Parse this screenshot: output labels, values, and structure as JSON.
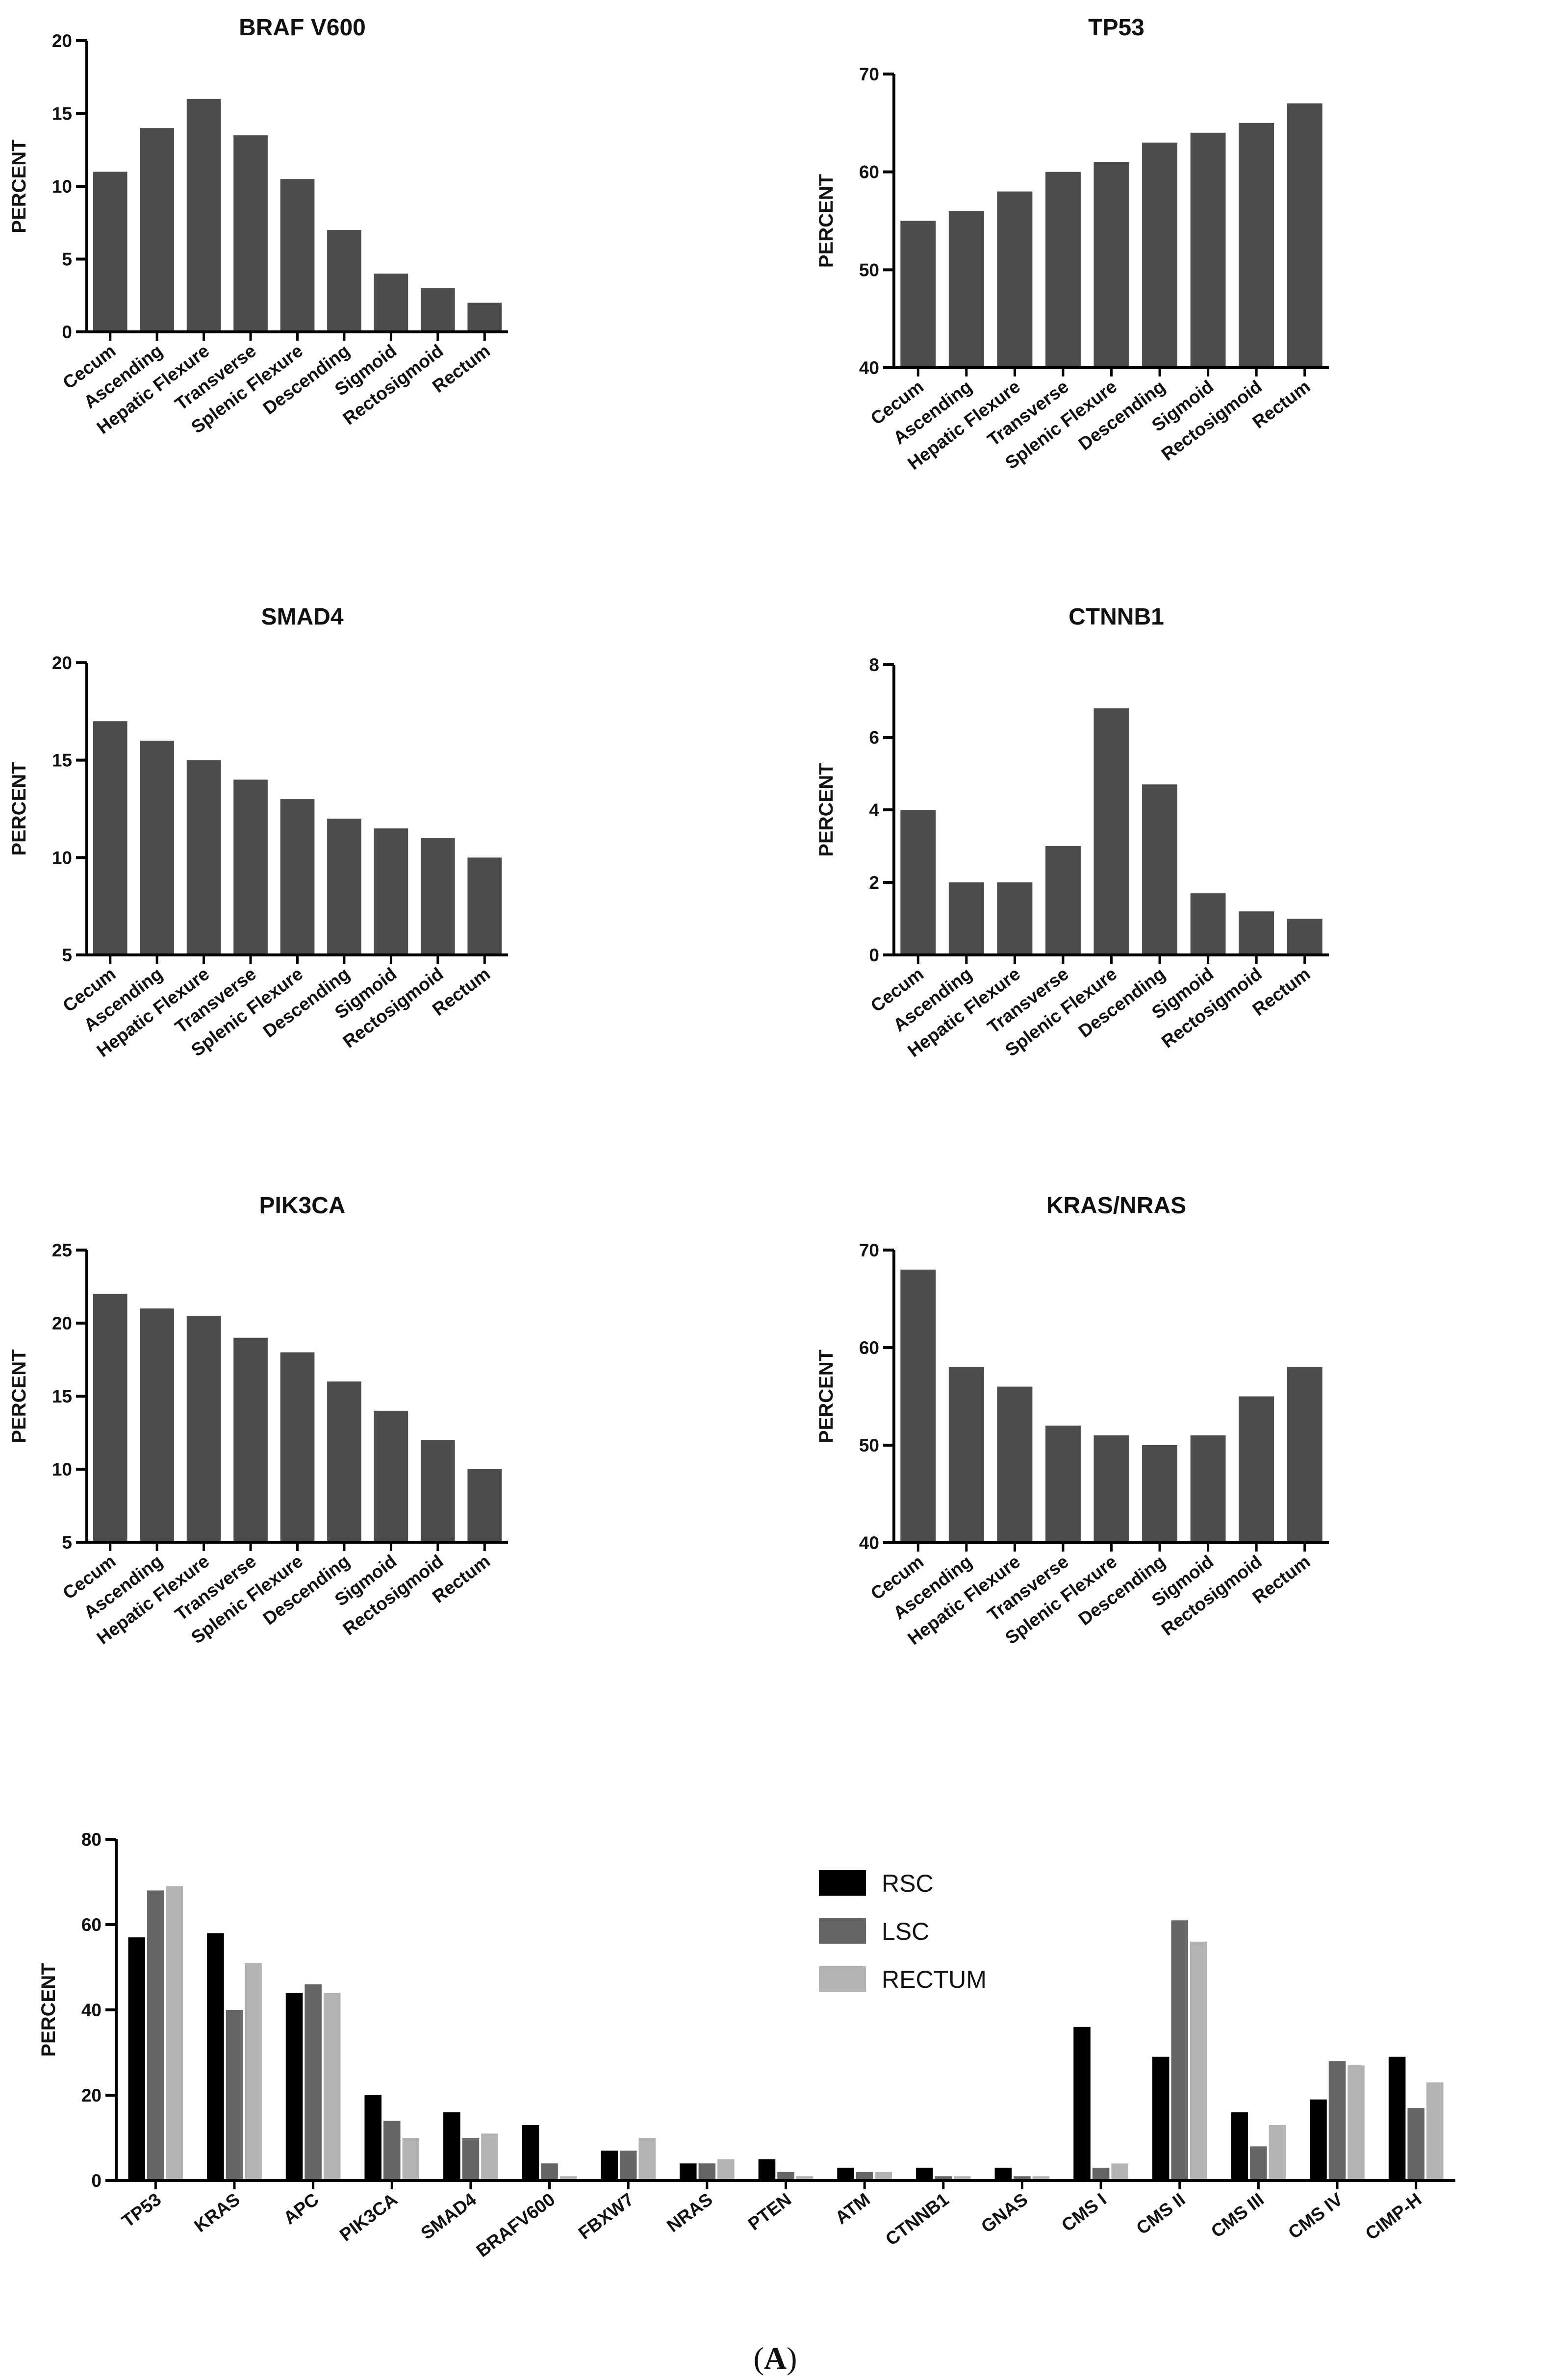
{
  "chart_data": [
    {
      "id": "braf",
      "type": "bar",
      "title": "BRAF V600",
      "ylabel": "PERCENT",
      "xlabel": "",
      "categories": [
        "Cecum",
        "Ascending",
        "Hepatic Flexure",
        "Transverse",
        "Splenic Flexure",
        "Descending",
        "Sigmoid",
        "Rectosigmoid",
        "Rectum"
      ],
      "values": [
        11,
        14,
        16,
        13.5,
        10.5,
        7,
        4,
        3,
        2
      ],
      "ylim": [
        0,
        20
      ],
      "yticks": [
        0,
        5,
        10,
        15,
        20
      ],
      "color": "#4d4d4d"
    },
    {
      "id": "tp53",
      "type": "bar",
      "title": "TP53",
      "ylabel": "PERCENT",
      "xlabel": "",
      "categories": [
        "Cecum",
        "Ascending",
        "Hepatic Flexure",
        "Transverse",
        "Splenic Flexure",
        "Descending",
        "Sigmoid",
        "Rectosigmoid",
        "Rectum"
      ],
      "values": [
        55,
        56,
        58,
        60,
        61,
        63,
        64,
        65,
        67
      ],
      "ylim": [
        40,
        70
      ],
      "yticks": [
        40,
        50,
        60,
        70
      ],
      "color": "#4d4d4d"
    },
    {
      "id": "smad4",
      "type": "bar",
      "title": "SMAD4",
      "ylabel": "PERCENT",
      "xlabel": "",
      "categories": [
        "Cecum",
        "Ascending",
        "Hepatic Flexure",
        "Transverse",
        "Splenic Flexure",
        "Descending",
        "Sigmoid",
        "Rectosigmoid",
        "Rectum"
      ],
      "values": [
        17,
        16,
        15,
        14,
        13,
        12,
        11.5,
        11,
        10
      ],
      "ylim": [
        5,
        20
      ],
      "yticks": [
        5,
        10,
        15,
        20
      ],
      "color": "#4d4d4d"
    },
    {
      "id": "ctnnb1",
      "type": "bar",
      "title": "CTNNB1",
      "ylabel": "PERCENT",
      "xlabel": "",
      "categories": [
        "Cecum",
        "Ascending",
        "Hepatic Flexure",
        "Transverse",
        "Splenic Flexure",
        "Descending",
        "Sigmoid",
        "Rectosigmoid",
        "Rectum"
      ],
      "values": [
        4,
        2,
        2,
        3,
        6.8,
        4.7,
        1.7,
        1.2,
        1
      ],
      "ylim": [
        0,
        8
      ],
      "yticks": [
        0,
        2,
        4,
        6,
        8
      ],
      "color": "#4d4d4d"
    },
    {
      "id": "pik3ca",
      "type": "bar",
      "title": "PIK3CA",
      "ylabel": "PERCENT",
      "xlabel": "",
      "categories": [
        "Cecum",
        "Ascending",
        "Hepatic Flexure",
        "Transverse",
        "Splenic Flexure",
        "Descending",
        "Sigmoid",
        "Rectosigmoid",
        "Rectum"
      ],
      "values": [
        22,
        21,
        20.5,
        19,
        18,
        16,
        14,
        12,
        10
      ],
      "ylim": [
        5,
        25
      ],
      "yticks": [
        5,
        10,
        15,
        20,
        25
      ],
      "color": "#4d4d4d"
    },
    {
      "id": "krasnras",
      "type": "bar",
      "title": "KRAS/NRAS",
      "ylabel": "PERCENT",
      "xlabel": "",
      "categories": [
        "Cecum",
        "Ascending",
        "Hepatic Flexure",
        "Transverse",
        "Splenic Flexure",
        "Descending",
        "Sigmoid",
        "Rectosigmoid",
        "Rectum"
      ],
      "values": [
        68,
        58,
        56,
        52,
        51,
        50,
        51,
        55,
        58
      ],
      "ylim": [
        40,
        70
      ],
      "yticks": [
        40,
        50,
        60,
        70
      ],
      "color": "#4d4d4d"
    },
    {
      "id": "grouped",
      "type": "bar",
      "title": "",
      "ylabel": "PERCENT",
      "xlabel": "",
      "categories": [
        "TP53",
        "KRAS",
        "APC",
        "PIK3CA",
        "SMAD4",
        "BRAFV600",
        "FBXW7",
        "NRAS",
        "PTEN",
        "ATM",
        "CTNNB1",
        "GNAS",
        "CMS I",
        "CMS II",
        "CMS III",
        "CMS IV",
        "CIMP-H"
      ],
      "series": [
        {
          "name": "RSC",
          "color": "#000000",
          "values": [
            57,
            58,
            44,
            20,
            16,
            13,
            7,
            4,
            5,
            3,
            3,
            3,
            36,
            29,
            16,
            19,
            29
          ]
        },
        {
          "name": "LSC",
          "color": "#666666",
          "values": [
            68,
            40,
            46,
            14,
            10,
            4,
            7,
            4,
            2,
            2,
            1,
            1,
            3,
            61,
            8,
            28,
            17
          ]
        },
        {
          "name": "RECTUM",
          "color": "#b3b3b3",
          "values": [
            69,
            51,
            44,
            10,
            11,
            1,
            10,
            5,
            1,
            2,
            1,
            1,
            4,
            56,
            13,
            27,
            23
          ]
        }
      ],
      "ylim": [
        0,
        80
      ],
      "yticks": [
        0,
        20,
        40,
        60,
        80
      ],
      "legend_position": "top-right"
    }
  ],
  "caption": {
    "open": "(",
    "letter": "A",
    "close": ")"
  }
}
